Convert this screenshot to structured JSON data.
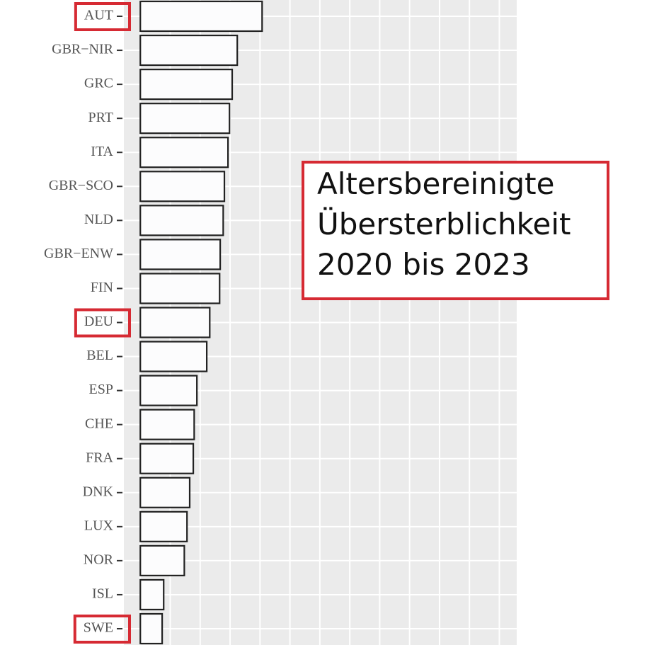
{
  "chart_data": {
    "type": "barh",
    "categories": [
      "AUT",
      "GBR−NIR",
      "GRC",
      "PRT",
      "ITA",
      "GBR−SCO",
      "NLD",
      "GBR−ENW",
      "FIN",
      "DEU",
      "BEL",
      "ESP",
      "CHE",
      "FRA",
      "DNK",
      "LUX",
      "NOR",
      "ISL",
      "SWE"
    ],
    "values": [
      4.07,
      3.24,
      3.07,
      2.98,
      2.93,
      2.81,
      2.77,
      2.67,
      2.65,
      2.32,
      2.22,
      1.89,
      1.8,
      1.77,
      1.65,
      1.56,
      1.47,
      0.78,
      0.73
    ],
    "color": "#fcfcfd",
    "xlim": [
      -0.55,
      12.58
    ],
    "gridlines": [
      0,
      1,
      2,
      3,
      4,
      5,
      6,
      7,
      8,
      9,
      10,
      11,
      12
    ],
    "grid": true,
    "highlighted": [
      "AUT",
      "DEU",
      "SWE"
    ],
    "annotation": [
      "Altersbereinigte",
      "Übersterblichkeit",
      "2020 bis 2023"
    ]
  }
}
